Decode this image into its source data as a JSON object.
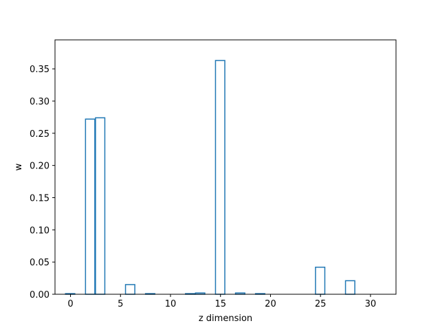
{
  "chart_data": {
    "type": "bar",
    "title": "",
    "xlabel": "z dimension",
    "ylabel": "w",
    "x": [
      0,
      1,
      2,
      3,
      4,
      5,
      6,
      7,
      8,
      9,
      10,
      11,
      12,
      13,
      14,
      15,
      16,
      17,
      18,
      19,
      20,
      21,
      22,
      23,
      24,
      25,
      26,
      27,
      28,
      29,
      30,
      31
    ],
    "values": [
      0.001,
      0.0,
      0.272,
      0.274,
      0.0,
      0.0,
      0.015,
      0.0,
      0.001,
      0.0,
      0.0,
      0.0,
      0.001,
      0.002,
      0.0,
      0.363,
      0.0,
      0.002,
      0.0,
      0.001,
      0.0,
      0.0,
      0.0,
      0.0,
      0.0,
      0.042,
      0.0,
      0.0,
      0.021,
      0.0,
      0.0,
      0.0
    ],
    "xlim": [
      -1.55,
      32.55
    ],
    "ylim": [
      0,
      0.395
    ],
    "xticks": [
      0,
      5,
      10,
      15,
      20,
      25,
      30
    ],
    "xtick_labels": [
      "0",
      "5",
      "10",
      "15",
      "20",
      "25",
      "30"
    ],
    "yticks": [
      0.0,
      0.05,
      0.1,
      0.15,
      0.2,
      0.25,
      0.3,
      0.35
    ],
    "ytick_labels": [
      "0.00",
      "0.05",
      "0.10",
      "0.15",
      "0.20",
      "0.25",
      "0.30",
      "0.35"
    ],
    "bar_style": "outline",
    "grid": false,
    "colors": {
      "bar_edge": "#1f77b4",
      "axes": "#000000"
    }
  }
}
